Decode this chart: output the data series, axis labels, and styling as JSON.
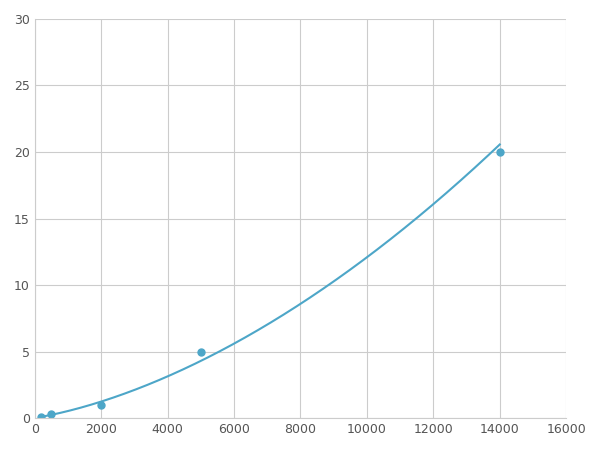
{
  "x": [
    200,
    500,
    2000,
    5000,
    14000
  ],
  "y": [
    0.1,
    0.3,
    1.0,
    5.0,
    20.0
  ],
  "line_color": "#4da6c8",
  "marker_color": "#4da6c8",
  "marker_size": 5,
  "line_width": 1.5,
  "xlim": [
    0,
    16000
  ],
  "ylim": [
    0,
    30
  ],
  "xticks": [
    0,
    2000,
    4000,
    6000,
    8000,
    10000,
    12000,
    14000,
    16000
  ],
  "yticks": [
    0,
    5,
    10,
    15,
    20,
    25,
    30
  ],
  "grid_color": "#cccccc",
  "background_color": "#ffffff",
  "figure_width": 6.0,
  "figure_height": 4.5,
  "dpi": 100
}
